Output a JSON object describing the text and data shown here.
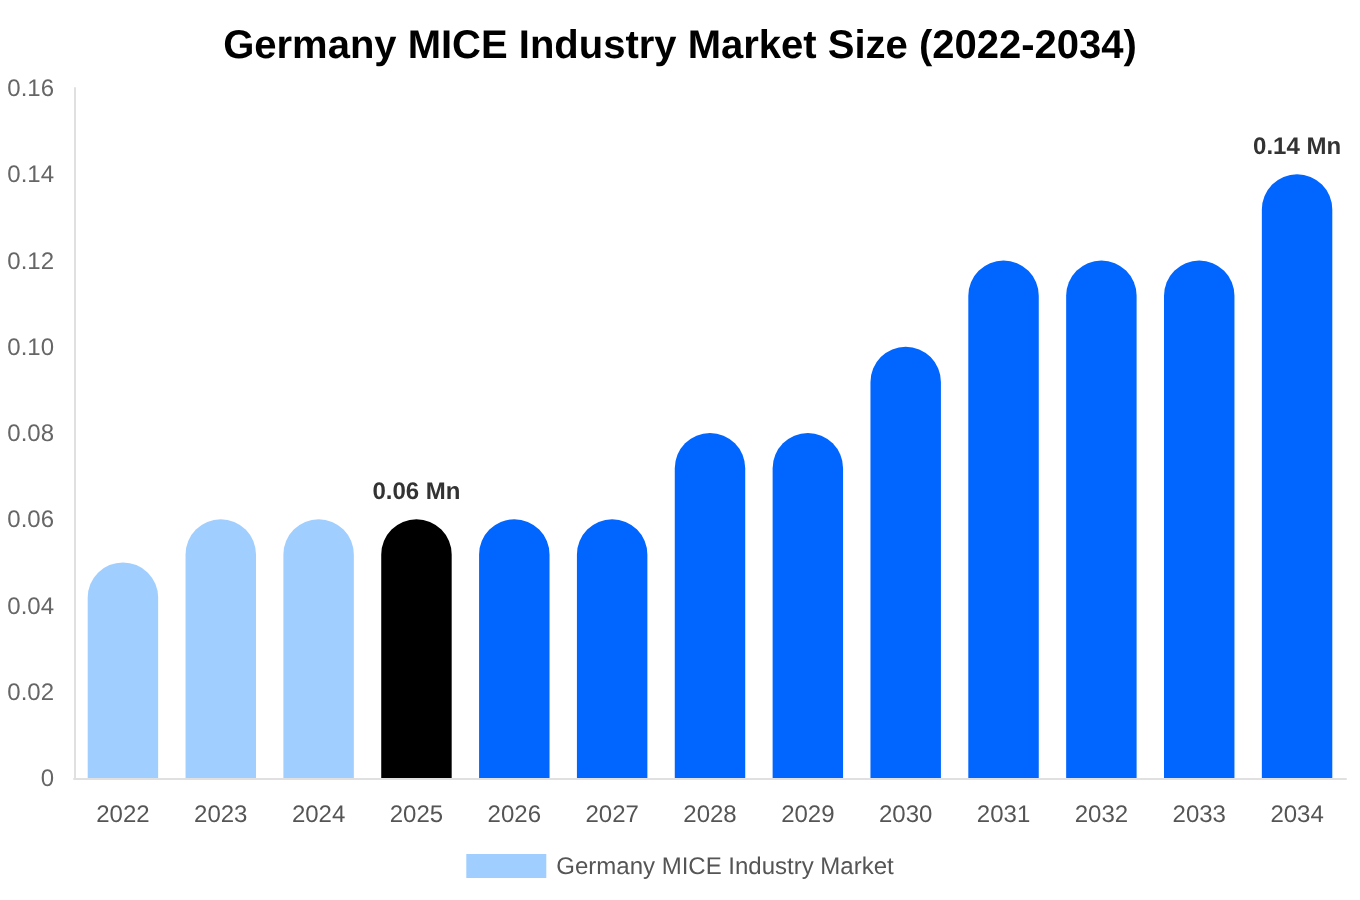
{
  "chart_data": {
    "type": "bar",
    "title": "Germany MICE Industry Market Size (2022-2034)",
    "categories": [
      "2022",
      "2023",
      "2024",
      "2025",
      "2026",
      "2027",
      "2028",
      "2029",
      "2030",
      "2031",
      "2032",
      "2033",
      "2034"
    ],
    "series": [
      {
        "name": "Germany MICE Industry Market",
        "color": "#a0cfff",
        "colors": [
          "#a0cfff",
          "#a0cfff",
          "#a0cfff",
          "#000000",
          "#0066ff",
          "#0066ff",
          "#0066ff",
          "#0066ff",
          "#0066ff",
          "#0066ff",
          "#0066ff",
          "#0066ff",
          "#0066ff"
        ],
        "values": [
          0.05,
          0.06,
          0.06,
          0.06,
          0.06,
          0.06,
          0.08,
          0.08,
          0.1,
          0.12,
          0.12,
          0.12,
          0.14
        ],
        "value_labels": [
          null,
          null,
          null,
          "0.06 Mn",
          null,
          null,
          null,
          null,
          null,
          null,
          null,
          null,
          "0.14 Mn"
        ]
      }
    ],
    "ylim": [
      0,
      0.16
    ],
    "yticks": [
      0,
      0.02,
      0.04,
      0.06,
      0.08,
      {
        "value": 0.1,
        "label": "0.10"
      },
      0.12,
      0.14,
      0.16
    ],
    "grid": false,
    "legend": "bottom"
  }
}
